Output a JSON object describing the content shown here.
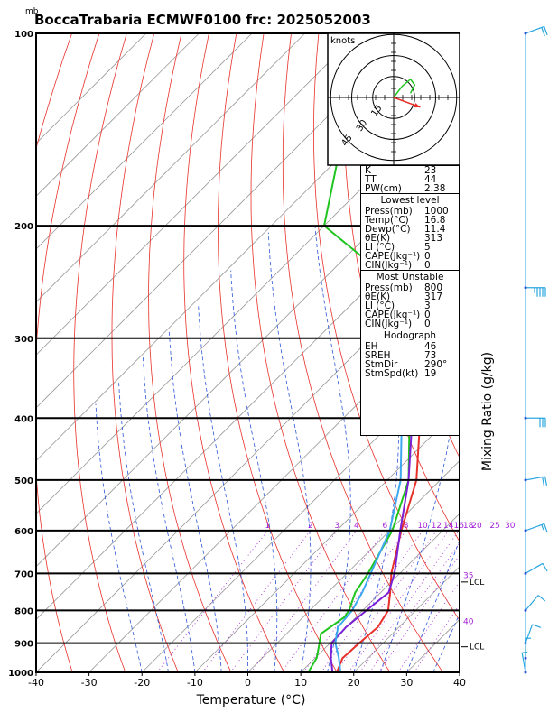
{
  "header": {
    "unit_label": "mb",
    "title": "BoccaTrabaria ECMWF0100 frc: 2025052003"
  },
  "chart_data": {
    "type": "skew-t log-p",
    "xlabel": "Temperature (°C)",
    "ylabel_right": "Mixing Ratio (g/kg)",
    "x_ticks": [
      -40,
      -30,
      -20,
      -10,
      0,
      10,
      20,
      30,
      40
    ],
    "xlim": [
      -40,
      40
    ],
    "pressure_ticks": [
      100,
      200,
      300,
      400,
      500,
      600,
      700,
      800,
      900,
      1000
    ],
    "ylim_mb": [
      1000,
      100
    ],
    "series": [
      {
        "name": "Temperature",
        "color": "#e8302a",
        "points": [
          [
            1000,
            16.8
          ],
          [
            950,
            15.2
          ],
          [
            900,
            15.5
          ],
          [
            850,
            16.0
          ],
          [
            800,
            14.8
          ],
          [
            750,
            11.8
          ],
          [
            700,
            8.4
          ],
          [
            600,
            2.2
          ],
          [
            500,
            -4.5
          ],
          [
            400,
            -15.5
          ],
          [
            300,
            -29.5
          ],
          [
            250,
            -40.0
          ],
          [
            200,
            -51.0
          ],
          [
            150,
            -56.0
          ],
          [
            100,
            -60.0
          ]
        ]
      },
      {
        "name": "Dewpoint",
        "color": "#1fc41f",
        "points": [
          [
            1000,
            11.4
          ],
          [
            950,
            10.3
          ],
          [
            900,
            8.0
          ],
          [
            870,
            6.5
          ],
          [
            820,
            7.8
          ],
          [
            800,
            7.4
          ],
          [
            750,
            5.2
          ],
          [
            700,
            4.0
          ],
          [
            600,
            0.5
          ],
          [
            500,
            -6.0
          ],
          [
            400,
            -17.5
          ],
          [
            300,
            -32.5
          ],
          [
            250,
            -44.0
          ],
          [
            200,
            -70.0
          ],
          [
            150,
            -82.0
          ],
          [
            100,
            -96.0
          ]
        ]
      },
      {
        "name": "Parcel",
        "color": "#7a1fd6",
        "points": [
          [
            1000,
            16.0
          ],
          [
            950,
            13.0
          ],
          [
            900,
            10.3
          ],
          [
            850,
            10.0
          ],
          [
            800,
            10.7
          ],
          [
            750,
            11.5
          ],
          [
            700,
            9.0
          ],
          [
            600,
            2.0
          ],
          [
            500,
            -6.0
          ],
          [
            400,
            -17.0
          ],
          [
            300,
            -32.0
          ],
          [
            200,
            -56.0
          ],
          [
            100,
            -90.0
          ]
        ]
      },
      {
        "name": "Virtual",
        "color": "#3ea8ef",
        "points": [
          [
            1000,
            17.5
          ],
          [
            950,
            14.5
          ],
          [
            900,
            11.0
          ],
          [
            850,
            8.5
          ],
          [
            800,
            8.0
          ],
          [
            750,
            6.5
          ],
          [
            700,
            4.5
          ],
          [
            600,
            0.0
          ],
          [
            500,
            -7.5
          ],
          [
            400,
            -19.0
          ],
          [
            300,
            -34.0
          ],
          [
            200,
            -58.0
          ],
          [
            100,
            -92.0
          ]
        ]
      }
    ],
    "mixing_ratio_labels": [
      "1",
      "2",
      "3",
      "4",
      "6",
      "8",
      "10",
      "12",
      "14",
      "16",
      "18",
      "20",
      "25",
      "30"
    ],
    "mixing_ratio_values": [
      1,
      2,
      3,
      4,
      6,
      8,
      10,
      12,
      14,
      16,
      18,
      20,
      25,
      30
    ],
    "theta_e_labels": [
      {
        "text": "35",
        "p": 705
      },
      {
        "text": "40",
        "p": 832
      }
    ],
    "lcl_labels": [
      {
        "text": "LCL",
        "p": 722
      },
      {
        "text": "LCL",
        "p": 912
      }
    ],
    "hodograph": {
      "label": "knots",
      "ring_labels": [
        "15",
        "30",
        "45"
      ],
      "rings_kt": [
        15,
        30,
        45
      ],
      "trace_kt": [
        [
          0,
          0
        ],
        [
          6,
          8
        ],
        [
          12,
          13
        ],
        [
          15,
          9
        ],
        [
          12,
          3
        ]
      ],
      "storm_motion_arrow_kt": [
        19,
        -7
      ]
    },
    "wind_barbs": [
      {
        "p": 100,
        "dir": 250,
        "kt": 20
      },
      {
        "p": 250,
        "dir": 270,
        "kt": 45
      },
      {
        "p": 400,
        "dir": 270,
        "kt": 30
      },
      {
        "p": 500,
        "dir": 260,
        "kt": 20
      },
      {
        "p": 600,
        "dir": 250,
        "kt": 15
      },
      {
        "p": 700,
        "dir": 240,
        "kt": 10
      },
      {
        "p": 800,
        "dir": 220,
        "kt": 10
      },
      {
        "p": 900,
        "dir": 200,
        "kt": 10
      },
      {
        "p": 950,
        "dir": 180,
        "kt": 5
      },
      {
        "p": 1000,
        "dir": 170,
        "kt": 5
      }
    ]
  },
  "stats": {
    "top": [
      {
        "label": "K",
        "value": "23"
      },
      {
        "label": "TT",
        "value": "44"
      },
      {
        "label": "PW(cm)",
        "value": "2.38"
      }
    ],
    "lowest_level": {
      "title": "Lowest level",
      "rows": [
        {
          "label": "Press(mb)",
          "value": "1000"
        },
        {
          "label": "Temp(°C)",
          "value": "16.8"
        },
        {
          "label": "Dewp(°C)",
          "value": "11.4"
        },
        {
          "label": "θE(K)",
          "value": "313"
        },
        {
          "label": "LI (°C)",
          "value": "5"
        },
        {
          "label": "CAPE(Jkg⁻¹)",
          "value": "0"
        },
        {
          "label": "CIN(Jkg⁻¹)",
          "value": "0"
        }
      ]
    },
    "most_unstable": {
      "title": "Most Unstable",
      "rows": [
        {
          "label": "Press(mb)",
          "value": "800"
        },
        {
          "label": "θE(K)",
          "value": "317"
        },
        {
          "label": "LI (°C)",
          "value": "3"
        },
        {
          "label": "CAPE(Jkg⁻¹)",
          "value": "0"
        },
        {
          "label": "CIN(Jkg⁻¹)",
          "value": "0"
        }
      ]
    },
    "hodograph": {
      "title": "Hodograph",
      "rows": [
        {
          "label": "EH",
          "value": "46"
        },
        {
          "label": "SREH",
          "value": "73"
        },
        {
          "label": "StmDir",
          "value": "290°"
        },
        {
          "label": "StmSpd(kt)",
          "value": "19"
        }
      ]
    }
  }
}
